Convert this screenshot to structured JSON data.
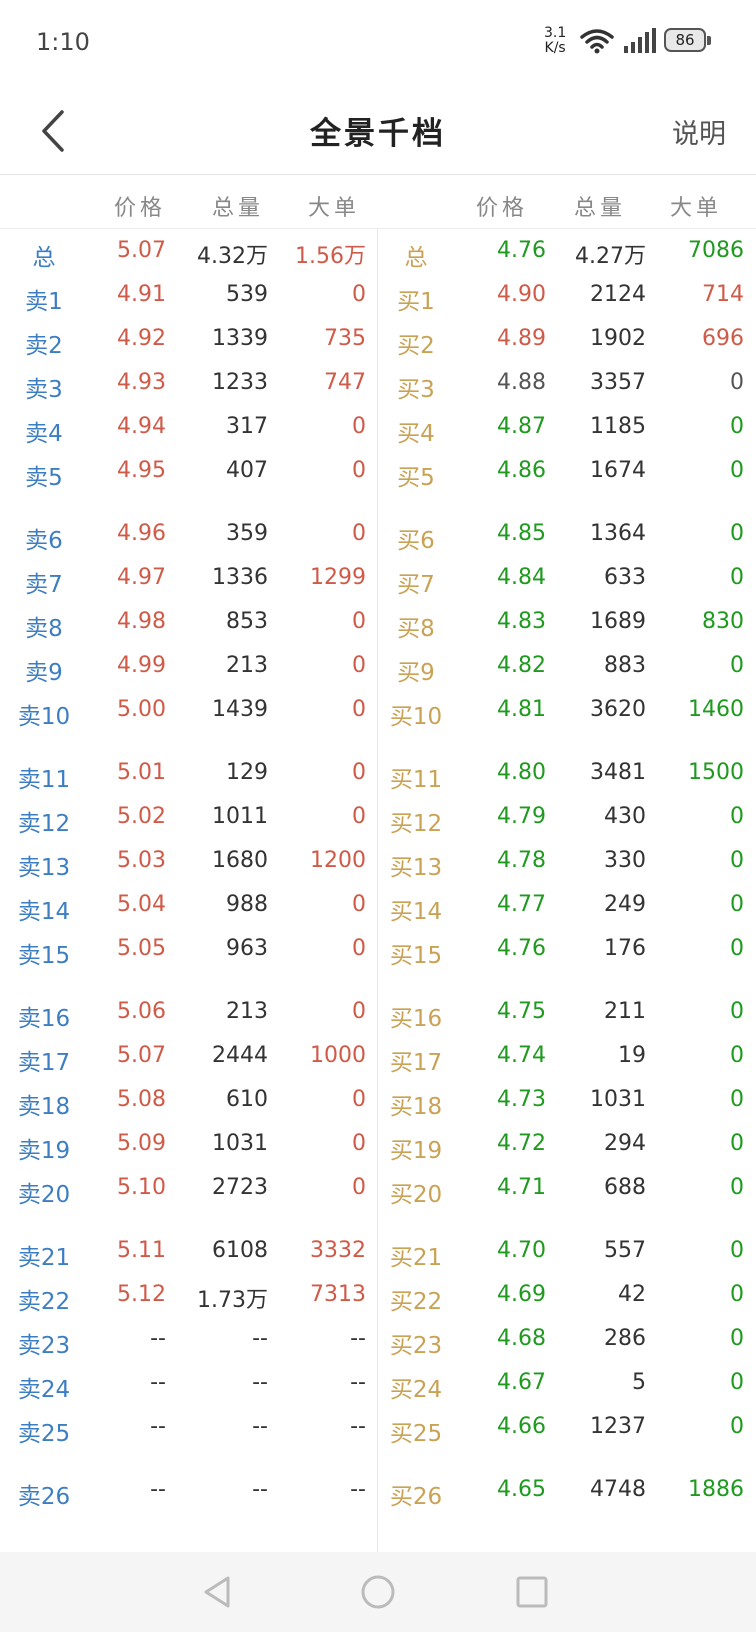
{
  "colors": {
    "red": "#d05a48",
    "green": "#1e9a1e",
    "gray": "#555555",
    "dark": "#333333",
    "sell_label": "#3d7ec2",
    "buy_label": "#c9a255"
  },
  "status": {
    "time": "1:10",
    "net_speed": "3.1",
    "net_unit": "K/s",
    "battery": "86"
  },
  "nav": {
    "title": "全景千档",
    "help": "说明"
  },
  "headers": {
    "price": "价格",
    "volume": "总量",
    "big": "大单",
    "price2": "价格",
    "volume2": "总量",
    "big2": "大单"
  },
  "rows": [
    {
      "sl": "总",
      "sp": "5.07",
      "sv": "4.32万",
      "sb": "1.56万",
      "spc": "red",
      "sbc": "red",
      "bl": "总",
      "bp": "4.76",
      "bv": "4.27万",
      "bb": "7086",
      "bpc": "green",
      "bbc": "green"
    },
    {
      "sl": "卖1",
      "sp": "4.91",
      "sv": "539",
      "sb": "0",
      "spc": "red",
      "sbc": "red",
      "bl": "买1",
      "bp": "4.90",
      "bv": "2124",
      "bb": "714",
      "bpc": "red",
      "bbc": "red"
    },
    {
      "sl": "卖2",
      "sp": "4.92",
      "sv": "1339",
      "sb": "735",
      "spc": "red",
      "sbc": "red",
      "bl": "买2",
      "bp": "4.89",
      "bv": "1902",
      "bb": "696",
      "bpc": "red",
      "bbc": "red"
    },
    {
      "sl": "卖3",
      "sp": "4.93",
      "sv": "1233",
      "sb": "747",
      "spc": "red",
      "sbc": "red",
      "bl": "买3",
      "bp": "4.88",
      "bv": "3357",
      "bb": "0",
      "bpc": "gray",
      "bbc": "gray"
    },
    {
      "sl": "卖4",
      "sp": "4.94",
      "sv": "317",
      "sb": "0",
      "spc": "red",
      "sbc": "red",
      "bl": "买4",
      "bp": "4.87",
      "bv": "1185",
      "bb": "0",
      "bpc": "green",
      "bbc": "green"
    },
    {
      "sl": "卖5",
      "sp": "4.95",
      "sv": "407",
      "sb": "0",
      "spc": "red",
      "sbc": "red",
      "bl": "买5",
      "bp": "4.86",
      "bv": "1674",
      "bb": "0",
      "bpc": "green",
      "bbc": "green"
    },
    {
      "sl": "卖6",
      "sp": "4.96",
      "sv": "359",
      "sb": "0",
      "spc": "red",
      "sbc": "red",
      "bl": "买6",
      "bp": "4.85",
      "bv": "1364",
      "bb": "0",
      "bpc": "green",
      "bbc": "green"
    },
    {
      "sl": "卖7",
      "sp": "4.97",
      "sv": "1336",
      "sb": "1299",
      "spc": "red",
      "sbc": "red",
      "bl": "买7",
      "bp": "4.84",
      "bv": "633",
      "bb": "0",
      "bpc": "green",
      "bbc": "green"
    },
    {
      "sl": "卖8",
      "sp": "4.98",
      "sv": "853",
      "sb": "0",
      "spc": "red",
      "sbc": "red",
      "bl": "买8",
      "bp": "4.83",
      "bv": "1689",
      "bb": "830",
      "bpc": "green",
      "bbc": "green"
    },
    {
      "sl": "卖9",
      "sp": "4.99",
      "sv": "213",
      "sb": "0",
      "spc": "red",
      "sbc": "red",
      "bl": "买9",
      "bp": "4.82",
      "bv": "883",
      "bb": "0",
      "bpc": "green",
      "bbc": "green"
    },
    {
      "sl": "卖10",
      "sp": "5.00",
      "sv": "1439",
      "sb": "0",
      "spc": "red",
      "sbc": "red",
      "bl": "买10",
      "bp": "4.81",
      "bv": "3620",
      "bb": "1460",
      "bpc": "green",
      "bbc": "green"
    },
    {
      "sl": "卖11",
      "sp": "5.01",
      "sv": "129",
      "sb": "0",
      "spc": "red",
      "sbc": "red",
      "bl": "买11",
      "bp": "4.80",
      "bv": "3481",
      "bb": "1500",
      "bpc": "green",
      "bbc": "green"
    },
    {
      "sl": "卖12",
      "sp": "5.02",
      "sv": "1011",
      "sb": "0",
      "spc": "red",
      "sbc": "red",
      "bl": "买12",
      "bp": "4.79",
      "bv": "430",
      "bb": "0",
      "bpc": "green",
      "bbc": "green"
    },
    {
      "sl": "卖13",
      "sp": "5.03",
      "sv": "1680",
      "sb": "1200",
      "spc": "red",
      "sbc": "red",
      "bl": "买13",
      "bp": "4.78",
      "bv": "330",
      "bb": "0",
      "bpc": "green",
      "bbc": "green"
    },
    {
      "sl": "卖14",
      "sp": "5.04",
      "sv": "988",
      "sb": "0",
      "spc": "red",
      "sbc": "red",
      "bl": "买14",
      "bp": "4.77",
      "bv": "249",
      "bb": "0",
      "bpc": "green",
      "bbc": "green"
    },
    {
      "sl": "卖15",
      "sp": "5.05",
      "sv": "963",
      "sb": "0",
      "spc": "red",
      "sbc": "red",
      "bl": "买15",
      "bp": "4.76",
      "bv": "176",
      "bb": "0",
      "bpc": "green",
      "bbc": "green"
    },
    {
      "sl": "卖16",
      "sp": "5.06",
      "sv": "213",
      "sb": "0",
      "spc": "red",
      "sbc": "red",
      "bl": "买16",
      "bp": "4.75",
      "bv": "211",
      "bb": "0",
      "bpc": "green",
      "bbc": "green"
    },
    {
      "sl": "卖17",
      "sp": "5.07",
      "sv": "2444",
      "sb": "1000",
      "spc": "red",
      "sbc": "red",
      "bl": "买17",
      "bp": "4.74",
      "bv": "19",
      "bb": "0",
      "bpc": "green",
      "bbc": "green"
    },
    {
      "sl": "卖18",
      "sp": "5.08",
      "sv": "610",
      "sb": "0",
      "spc": "red",
      "sbc": "red",
      "bl": "买18",
      "bp": "4.73",
      "bv": "1031",
      "bb": "0",
      "bpc": "green",
      "bbc": "green"
    },
    {
      "sl": "卖19",
      "sp": "5.09",
      "sv": "1031",
      "sb": "0",
      "spc": "red",
      "sbc": "red",
      "bl": "买19",
      "bp": "4.72",
      "bv": "294",
      "bb": "0",
      "bpc": "green",
      "bbc": "green"
    },
    {
      "sl": "卖20",
      "sp": "5.10",
      "sv": "2723",
      "sb": "0",
      "spc": "red",
      "sbc": "red",
      "bl": "买20",
      "bp": "4.71",
      "bv": "688",
      "bb": "0",
      "bpc": "green",
      "bbc": "green"
    },
    {
      "sl": "卖21",
      "sp": "5.11",
      "sv": "6108",
      "sb": "3332",
      "spc": "red",
      "sbc": "red",
      "bl": "买21",
      "bp": "4.70",
      "bv": "557",
      "bb": "0",
      "bpc": "green",
      "bbc": "green"
    },
    {
      "sl": "卖22",
      "sp": "5.12",
      "sv": "1.73万",
      "sb": "7313",
      "spc": "red",
      "sbc": "red",
      "bl": "买22",
      "bp": "4.69",
      "bv": "42",
      "bb": "0",
      "bpc": "green",
      "bbc": "green"
    },
    {
      "sl": "卖23",
      "sp": "--",
      "sv": "--",
      "sb": "--",
      "spc": "dark",
      "sbc": "dark",
      "bl": "买23",
      "bp": "4.68",
      "bv": "286",
      "bb": "0",
      "bpc": "green",
      "bbc": "green"
    },
    {
      "sl": "卖24",
      "sp": "--",
      "sv": "--",
      "sb": "--",
      "spc": "dark",
      "sbc": "dark",
      "bl": "买24",
      "bp": "4.67",
      "bv": "5",
      "bb": "0",
      "bpc": "green",
      "bbc": "green"
    },
    {
      "sl": "卖25",
      "sp": "--",
      "sv": "--",
      "sb": "--",
      "spc": "dark",
      "sbc": "dark",
      "bl": "买25",
      "bp": "4.66",
      "bv": "1237",
      "bb": "0",
      "bpc": "green",
      "bbc": "green"
    },
    {
      "sl": "卖26",
      "sp": "--",
      "sv": "--",
      "sb": "--",
      "spc": "dark",
      "sbc": "dark",
      "bl": "买26",
      "bp": "4.65",
      "bv": "4748",
      "bb": "1886",
      "bpc": "green",
      "bbc": "green"
    }
  ]
}
